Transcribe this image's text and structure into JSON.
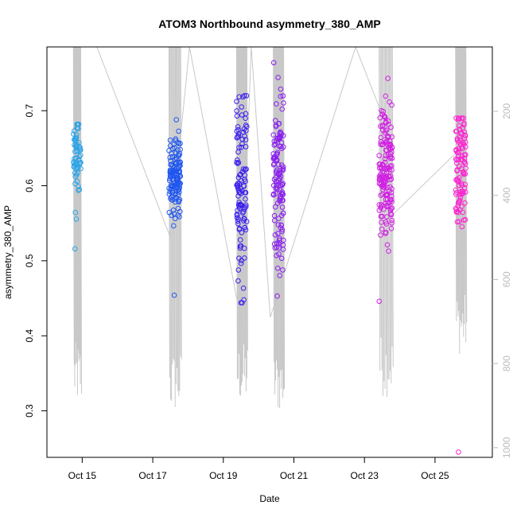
{
  "chart_data": {
    "type": "scatter",
    "title": "ATOM3 Northbound asymmetry_380_AMP",
    "xlabel": "Date",
    "ylabel": "asymmetry_380_AMP",
    "xlim": [
      "2023-10-14 00:00",
      "2023-10-26 15:00"
    ],
    "ylim": [
      0.238,
      0.785
    ],
    "x_ticks": [
      {
        "date": "2023-10-15",
        "label": "Oct 15"
      },
      {
        "date": "2023-10-17",
        "label": "Oct 17"
      },
      {
        "date": "2023-10-19",
        "label": "Oct 19"
      },
      {
        "date": "2023-10-21",
        "label": "Oct 21"
      },
      {
        "date": "2023-10-23",
        "label": "Oct 23"
      },
      {
        "date": "2023-10-25",
        "label": "Oct 25"
      }
    ],
    "y_ticks": [
      "0.3",
      "0.4",
      "0.5",
      "0.6",
      "0.7"
    ],
    "right_axis": {
      "range": [
        1023,
        47
      ],
      "reversed": true,
      "ticks": [
        "200",
        "400",
        "600",
        "800",
        "1000"
      ],
      "color": "#bbbbbb"
    },
    "grid": false,
    "legend": "none",
    "series_colors": [
      "#29a3e8",
      "#1f56f0",
      "#3a1ff0",
      "#8a1ff0",
      "#d11fe3",
      "#ff1fd2"
    ],
    "background_trace": {
      "color": "#c8c8c8",
      "description_values": [
        {
          "x": "2023-10-15 10:00",
          "y": 47
        },
        {
          "x": "2023-10-17 12:00",
          "y": 500
        },
        {
          "x": "2023-10-18 01:00",
          "y": 47
        },
        {
          "x": "2023-10-19 12:00",
          "y": 700
        },
        {
          "x": "2023-10-19 19:00",
          "y": 47
        },
        {
          "x": "2023-10-20 08:00",
          "y": 690
        },
        {
          "x": "2023-10-22 18:00",
          "y": 47
        },
        {
          "x": "2023-10-23 10:00",
          "y": 190
        },
        {
          "x": "2023-10-23 18:00",
          "y": 450
        },
        {
          "x": "2023-10-25 14:00",
          "y": 300
        }
      ]
    },
    "clusters": [
      {
        "x_start": "2023-10-14 18:00",
        "x_end": "2023-10-14 23:00",
        "y_center": 0.635,
        "y_spread": 0.03,
        "y_min": 0.516,
        "y_max": 0.682,
        "count": 60,
        "color": "#29a3e8",
        "trace_min": 900,
        "trace_max": 47
      },
      {
        "x_start": "2023-10-17 11:00",
        "x_end": "2023-10-17 19:00",
        "y_center": 0.612,
        "y_spread": 0.025,
        "y_min": 0.454,
        "y_max": 0.688,
        "count": 130,
        "color": "#1f56f0",
        "trace_min": 920,
        "trace_max": 47
      },
      {
        "x_start": "2023-10-19 09:00",
        "x_end": "2023-10-19 16:00",
        "y_center": 0.6,
        "y_spread": 0.06,
        "y_min": 0.444,
        "y_max": 0.72,
        "count": 110,
        "color": "#3a1ff0",
        "trace_min": 900,
        "trace_max": 47
      },
      {
        "x_start": "2023-10-20 10:00",
        "x_end": "2023-10-20 17:00",
        "y_center": 0.61,
        "y_spread": 0.06,
        "y_min": 0.453,
        "y_max": 0.764,
        "count": 130,
        "color": "#8a1ff0",
        "trace_min": 920,
        "trace_max": 47
      },
      {
        "x_start": "2023-10-23 10:00",
        "x_end": "2023-10-23 19:00",
        "y_center": 0.61,
        "y_spread": 0.045,
        "y_min": 0.446,
        "y_max": 0.743,
        "count": 160,
        "color": "#d11fe3",
        "trace_min": 880,
        "trace_max": 47
      },
      {
        "x_start": "2023-10-25 14:00",
        "x_end": "2023-10-25 21:00",
        "y_center": 0.625,
        "y_spread": 0.04,
        "y_min": 0.245,
        "y_max": 0.69,
        "count": 100,
        "color": "#ff1fd2",
        "trace_min": 780,
        "trace_max": 47
      }
    ]
  }
}
